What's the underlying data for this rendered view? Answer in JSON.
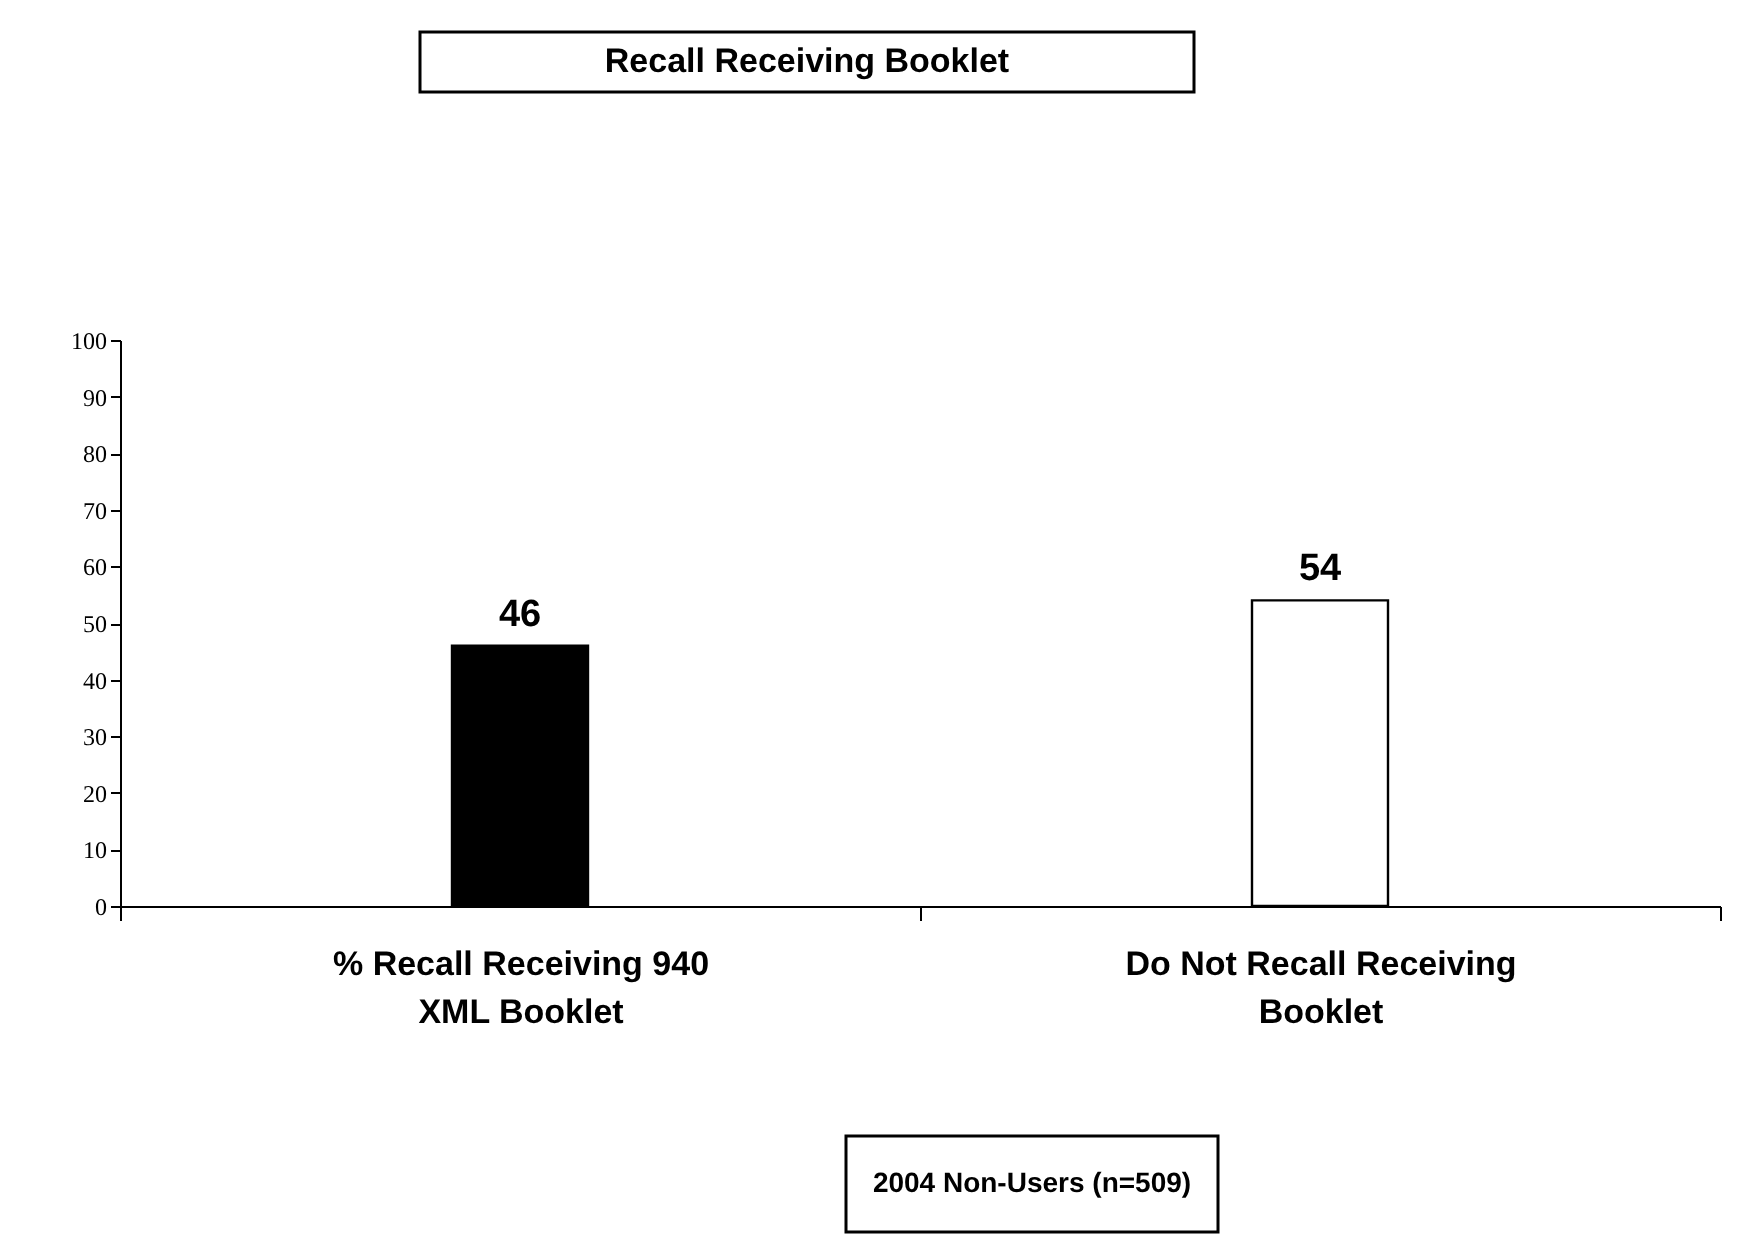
{
  "chart_data": {
    "type": "bar",
    "title": "Recall Receiving Booklet",
    "categories": [
      "% Recall Receiving 940 XML Booklet",
      "Do Not Recall Receiving Booklet"
    ],
    "values": [
      46,
      54
    ],
    "colors": [
      "#000000",
      "#ffffff"
    ],
    "ylim": [
      0,
      100
    ],
    "yticks": [
      0,
      10,
      20,
      30,
      40,
      50,
      60,
      70,
      80,
      90,
      100
    ],
    "data_labels": true,
    "grid": false,
    "annotations": [
      "2004 Non-Users (n=509)"
    ]
  }
}
